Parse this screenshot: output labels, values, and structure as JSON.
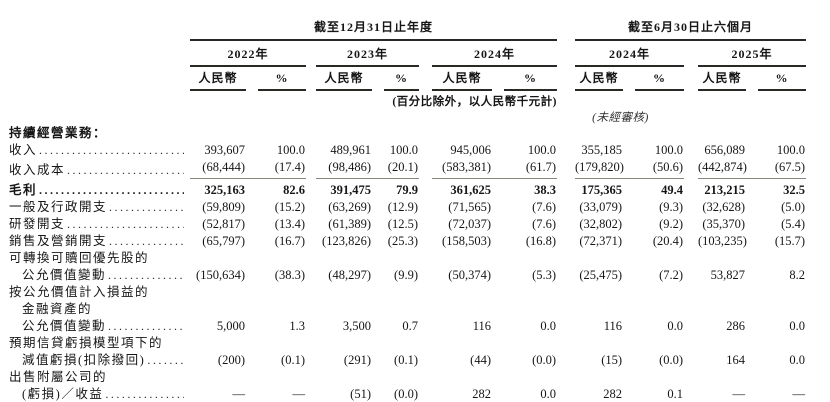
{
  "table": {
    "col_groups": [
      {
        "title": "截至12月31日止年度",
        "years": [
          {
            "label": "2022年"
          },
          {
            "label": "2023年"
          },
          {
            "label": "2024年"
          }
        ]
      },
      {
        "title": "截至6月30日止六個月",
        "years": [
          {
            "label": "2024年"
          },
          {
            "label": "2025年"
          }
        ]
      }
    ],
    "currency_header": "人民幣",
    "percent_header": "%",
    "unit_note": "(百分比除外，以人民幣千元計)",
    "unaudited_note": "(未經審核)",
    "rows": [
      {
        "label": "持續經營業務：",
        "bold": true
      },
      {
        "label": "收入",
        "leaders": true,
        "values": [
          "393,607",
          "100.0",
          "489,961",
          "100.0",
          "945,006",
          "100.0",
          "355,185",
          "100.0",
          "656,089",
          "100.0"
        ]
      },
      {
        "label": "收入成本",
        "leaders": true,
        "rule": true,
        "values": [
          "(68,444)",
          "(17.4)",
          "(98,486)",
          "(20.1)",
          "(583,381)",
          "(61.7)",
          "(179,820)",
          "(50.6)",
          "(442,874)",
          "(67.5)"
        ]
      },
      {
        "label": "毛利",
        "leaders": true,
        "bold": true,
        "pad_top": true,
        "values": [
          "325,163",
          "82.6",
          "391,475",
          "79.9",
          "361,625",
          "38.3",
          "175,365",
          "49.4",
          "213,215",
          "32.5"
        ]
      },
      {
        "label": "一般及行政開支",
        "leaders": true,
        "values": [
          "(59,809)",
          "(15.2)",
          "(63,269)",
          "(12.9)",
          "(71,565)",
          "(7.6)",
          "(33,079)",
          "(9.3)",
          "(32,628)",
          "(5.0)"
        ]
      },
      {
        "label": "研發開支",
        "leaders": true,
        "values": [
          "(52,817)",
          "(13.4)",
          "(61,389)",
          "(12.5)",
          "(72,037)",
          "(7.6)",
          "(32,802)",
          "(9.2)",
          "(35,370)",
          "(5.4)"
        ]
      },
      {
        "label": "銷售及營銷開支",
        "leaders": true,
        "values": [
          "(65,797)",
          "(16.7)",
          "(123,826)",
          "(25.3)",
          "(158,503)",
          "(16.8)",
          "(72,371)",
          "(20.4)",
          "(103,235)",
          "(15.7)"
        ]
      },
      {
        "label": "可轉換可贖回優先股的"
      },
      {
        "label": "公允價值變動",
        "indent": 1,
        "leaders": true,
        "values": [
          "(150,634)",
          "(38.3)",
          "(48,297)",
          "(9.9)",
          "(50,374)",
          "(5.3)",
          "(25,475)",
          "(7.2)",
          "53,827",
          "8.2"
        ]
      },
      {
        "label": "按公允價值計入損益的"
      },
      {
        "label": "金融資產的",
        "indent": 1
      },
      {
        "label": "公允價值變動",
        "indent": 1,
        "leaders": true,
        "values": [
          "5,000",
          "1.3",
          "3,500",
          "0.7",
          "116",
          "0.0",
          "116",
          "0.0",
          "286",
          "0.0"
        ]
      },
      {
        "label": "預期信貸虧損模型項下的"
      },
      {
        "label": "減值虧損(扣除撥回)",
        "indent": 1,
        "leaders": true,
        "values": [
          "(200)",
          "(0.1)",
          "(291)",
          "(0.1)",
          "(44)",
          "(0.0)",
          "(15)",
          "(0.0)",
          "164",
          "0.0"
        ]
      },
      {
        "label": "出售附屬公司的"
      },
      {
        "label": "(虧損)／收益",
        "indent": 1,
        "leaders": true,
        "values": [
          "—",
          "—",
          "(51)",
          "(0.0)",
          "282",
          "0.0",
          "282",
          "0.1",
          "—",
          "—"
        ]
      }
    ]
  }
}
